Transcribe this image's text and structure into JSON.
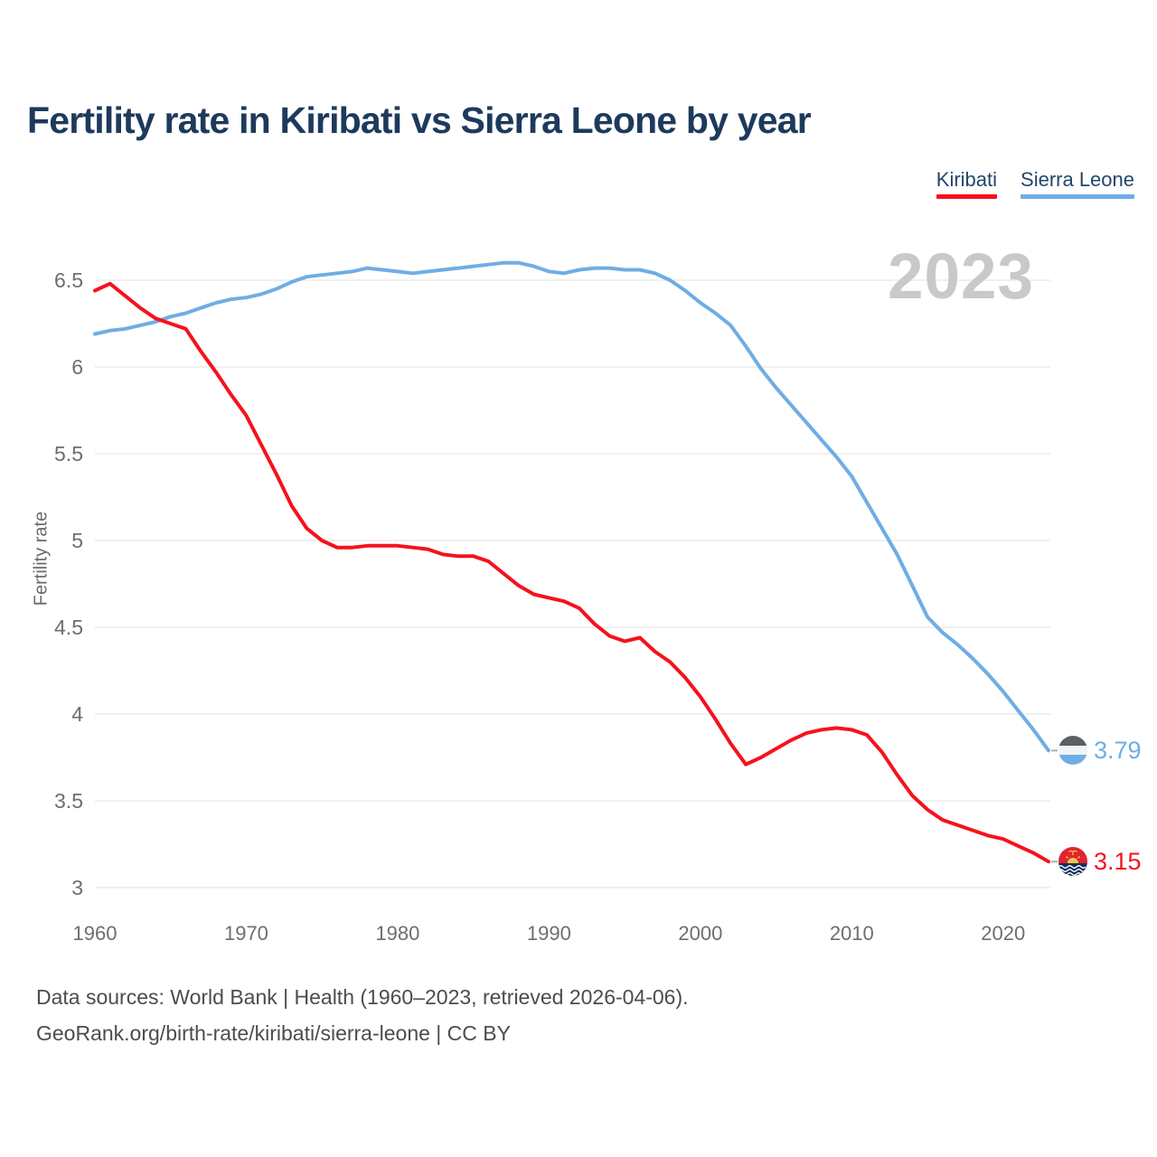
{
  "chart": {
    "title": "Fertility rate in Kiribati vs Sierra Leone by year",
    "watermark": "2023",
    "ylabel": "Fertility rate",
    "footer_line1": "Data sources: World Bank | Health (1960–2023, retrieved 2026-04-06).",
    "footer_line2": "GeoRank.org/birth-rate/kiribati/sierra-leone | CC BY"
  },
  "legend": {
    "position": "top-right",
    "items": [
      {
        "label": "Kiribati",
        "color": "#f5121d"
      },
      {
        "label": "Sierra Leone",
        "color": "#6fade4"
      }
    ]
  },
  "colors": {
    "title_text": "#1d3a5c",
    "axis_text": "#6e6e6e",
    "gridline": "#e8e8e8",
    "watermark": "#c9c9c9",
    "footer_text": "#4c4c4c",
    "kiribati_red": "#f5121d",
    "sierra_leone_blue": "#6fade4"
  },
  "chart_data": {
    "type": "line",
    "title": "Fertility rate in Kiribati vs Sierra Leone by year",
    "xlabel": "",
    "ylabel": "Fertility rate",
    "grid": "horizontal",
    "legend_position": "top-right",
    "x_range": [
      1960,
      2023
    ],
    "ylim": [
      3,
      6.5
    ],
    "yticks": [
      3,
      3.5,
      4,
      4.5,
      5,
      5.5,
      6,
      6.5
    ],
    "xticks": [
      1960,
      1970,
      1980,
      1990,
      2000,
      2010,
      2020
    ],
    "x": [
      1960,
      1961,
      1962,
      1963,
      1964,
      1965,
      1966,
      1967,
      1968,
      1969,
      1970,
      1971,
      1972,
      1973,
      1974,
      1975,
      1976,
      1977,
      1978,
      1979,
      1980,
      1981,
      1982,
      1983,
      1984,
      1985,
      1986,
      1987,
      1988,
      1989,
      1990,
      1991,
      1992,
      1993,
      1994,
      1995,
      1996,
      1997,
      1998,
      1999,
      2000,
      2001,
      2002,
      2003,
      2004,
      2005,
      2006,
      2007,
      2008,
      2009,
      2010,
      2011,
      2012,
      2013,
      2014,
      2015,
      2016,
      2017,
      2018,
      2019,
      2020,
      2021,
      2022,
      2023
    ],
    "series": [
      {
        "name": "Kiribati",
        "color": "#f5121d",
        "end_label": "3.15",
        "end_value": 3.15,
        "values": [
          6.44,
          6.48,
          6.41,
          6.34,
          6.28,
          6.25,
          6.22,
          6.09,
          5.97,
          5.84,
          5.72,
          5.55,
          5.38,
          5.2,
          5.07,
          5.0,
          4.96,
          4.96,
          4.97,
          4.97,
          4.97,
          4.96,
          4.95,
          4.92,
          4.91,
          4.91,
          4.88,
          4.81,
          4.74,
          4.69,
          4.67,
          4.65,
          4.61,
          4.52,
          4.45,
          4.42,
          4.44,
          4.36,
          4.3,
          4.21,
          4.1,
          3.97,
          3.83,
          3.71,
          3.75,
          3.8,
          3.85,
          3.89,
          3.91,
          3.92,
          3.91,
          3.88,
          3.78,
          3.65,
          3.53,
          3.45,
          3.39,
          3.36,
          3.33,
          3.3,
          3.28,
          3.24,
          3.2,
          3.15
        ]
      },
      {
        "name": "Sierra Leone",
        "color": "#6fade4",
        "end_label": "3.79",
        "end_value": 3.79,
        "values": [
          6.19,
          6.21,
          6.22,
          6.24,
          6.26,
          6.29,
          6.31,
          6.34,
          6.37,
          6.39,
          6.4,
          6.42,
          6.45,
          6.49,
          6.52,
          6.53,
          6.54,
          6.55,
          6.57,
          6.56,
          6.55,
          6.54,
          6.55,
          6.56,
          6.57,
          6.58,
          6.59,
          6.6,
          6.6,
          6.58,
          6.55,
          6.54,
          6.56,
          6.57,
          6.57,
          6.56,
          6.56,
          6.54,
          6.5,
          6.44,
          6.37,
          6.31,
          6.24,
          6.12,
          5.99,
          5.88,
          5.78,
          5.68,
          5.58,
          5.48,
          5.37,
          5.22,
          5.07,
          4.92,
          4.74,
          4.56,
          4.47,
          4.4,
          4.32,
          4.23,
          4.13,
          4.02,
          3.91,
          3.79
        ]
      }
    ]
  }
}
